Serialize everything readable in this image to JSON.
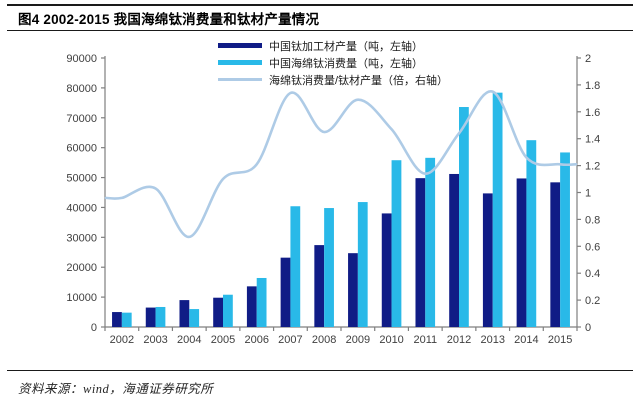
{
  "figure": {
    "title": "图4  2002-2015 我国海绵钛消费量和钛材产量情况",
    "source": "资料来源：wind，海通证券研究所"
  },
  "colors": {
    "production_bar": "#101c86",
    "consumption_bar": "#29b9e8",
    "ratio_line": "#aecbe6",
    "axis": "#7f7f7f",
    "tick_text": "#404040",
    "rule": "#1a1a1a"
  },
  "chart_data": {
    "type": "bar+line",
    "title": "2002-2015 我国海绵钛消费量和钛材产量情况",
    "categories": [
      "2002",
      "2003",
      "2004",
      "2005",
      "2006",
      "2007",
      "2008",
      "2009",
      "2010",
      "2011",
      "2012",
      "2013",
      "2014",
      "2015"
    ],
    "series": [
      {
        "name": "中国钛加工材产量（吨，左轴）",
        "type": "bar",
        "axis": "left",
        "color_key": "production_bar",
        "values": [
          5000,
          6500,
          9000,
          9800,
          13600,
          23200,
          27400,
          24700,
          38000,
          49800,
          51200,
          44700,
          49700,
          48400
        ]
      },
      {
        "name": "中国海绵钛消费量（吨，左轴）",
        "type": "bar",
        "axis": "left",
        "color_key": "consumption_bar",
        "values": [
          4800,
          6700,
          6000,
          10800,
          16400,
          40400,
          39800,
          41800,
          55800,
          56600,
          73600,
          78400,
          62500,
          58400
        ]
      },
      {
        "name": "海绵钛消费量/钛材产量（倍，右轴）",
        "type": "line",
        "axis": "right",
        "color_key": "ratio_line",
        "values": [
          0.96,
          1.03,
          0.67,
          1.1,
          1.21,
          1.74,
          1.45,
          1.69,
          1.47,
          1.14,
          1.44,
          1.75,
          1.26,
          1.21
        ]
      }
    ],
    "left_axis": {
      "min": 0,
      "max": 90000,
      "step": 10000,
      "tick_labels": [
        "0",
        "10000",
        "20000",
        "30000",
        "40000",
        "50000",
        "60000",
        "70000",
        "80000",
        "90000"
      ]
    },
    "right_axis": {
      "min": 0,
      "max": 2,
      "step": 0.2,
      "tick_labels": [
        "0",
        "0.2",
        "0.4",
        "0.6",
        "0.8",
        "1",
        "1.2",
        "1.4",
        "1.6",
        "1.8",
        "2"
      ]
    },
    "legend_position": "top-center",
    "grid": false
  }
}
